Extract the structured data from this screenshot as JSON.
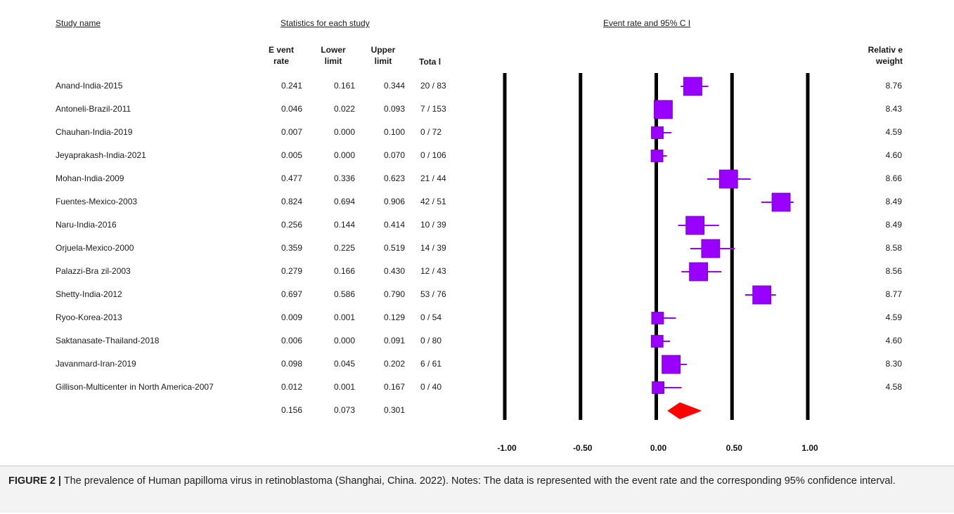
{
  "headers": {
    "study_name": "Study name",
    "statistics": "Statistics for each study",
    "event_rate_ci": "Event rate and 95% C I",
    "event_rate_l1": "E vent",
    "event_rate_l2": "rate",
    "lower_l1": "Lower",
    "lower_l2": "limit",
    "upper_l1": "Upper",
    "upper_l2": "limit",
    "total": "Tota l",
    "weight_l1": "Relativ e",
    "weight_l2": "weight"
  },
  "chart_data": {
    "type": "forest",
    "xlim": [
      -1.0,
      1.0
    ],
    "ticks": [
      "-1.00",
      "-0.50",
      "0.00",
      "0.50",
      "1.00"
    ],
    "tick_values": [
      -1.0,
      -0.5,
      0.0,
      0.5,
      1.0
    ],
    "marker_color": "#9900ff",
    "summary_color": "#ff0000",
    "studies": [
      {
        "name": "Anand-India-2015",
        "rate": "0.241",
        "lower": "0.161",
        "upper": "0.344",
        "total": "20 / 83",
        "weight": "8.76"
      },
      {
        "name": "Antoneli-Brazil-2011",
        "rate": "0.046",
        "lower": "0.022",
        "upper": "0.093",
        "total": "7 / 153",
        "weight": "8.43"
      },
      {
        "name": "Chauhan-India-2019",
        "rate": "0.007",
        "lower": "0.000",
        "upper": "0.100",
        "total": "0 / 72",
        "weight": "4.59"
      },
      {
        "name": "Jeyaprakash-India-2021",
        "rate": "0.005",
        "lower": "0.000",
        "upper": "0.070",
        "total": "0 / 106",
        "weight": "4.60"
      },
      {
        "name": "Mohan-India-2009",
        "rate": "0.477",
        "lower": "0.336",
        "upper": "0.623",
        "total": "21 / 44",
        "weight": "8.66"
      },
      {
        "name": "Fuentes-Mexico-2003",
        "rate": "0.824",
        "lower": "0.694",
        "upper": "0.906",
        "total": "42 / 51",
        "weight": "8.49"
      },
      {
        "name": "Naru-India-2016",
        "rate": "0.256",
        "lower": "0.144",
        "upper": "0.414",
        "total": "10 / 39",
        "weight": "8.49"
      },
      {
        "name": "Orjuela-Mexico-2000",
        "rate": "0.359",
        "lower": "0.225",
        "upper": "0.519",
        "total": "14 / 39",
        "weight": "8.58"
      },
      {
        "name": "Palazzi-Bra zil-2003",
        "rate": "0.279",
        "lower": "0.166",
        "upper": "0.430",
        "total": "12 / 43",
        "weight": "8.56"
      },
      {
        "name": "Shetty-India-2012",
        "rate": "0.697",
        "lower": "0.586",
        "upper": "0.790",
        "total": "53 / 76",
        "weight": "8.77"
      },
      {
        "name": "Ryoo-Korea-2013",
        "rate": "0.009",
        "lower": "0.001",
        "upper": "0.129",
        "total": "0 / 54",
        "weight": "4.59"
      },
      {
        "name": "Saktanasate-Thailand-2018",
        "rate": "0.006",
        "lower": "0.000",
        "upper": "0.091",
        "total": "0 / 80",
        "weight": "4.60"
      },
      {
        "name": "Javanmard-Iran-2019",
        "rate": "0.098",
        "lower": "0.045",
        "upper": "0.202",
        "total": "6 / 61",
        "weight": "8.30"
      },
      {
        "name": "Gillison-Multicenter in North America-2007",
        "rate": "0.012",
        "lower": "0.001",
        "upper": "0.167",
        "total": "0 / 40",
        "weight": "4.58"
      }
    ],
    "summary": {
      "rate": "0.156",
      "lower": "0.073",
      "upper": "0.301"
    }
  },
  "caption": {
    "label": "FIGURE 2 |",
    "text": " The prevalence of Human papilloma virus in retinoblastoma (Shanghai, China. 2022). Notes: The data is represented with the event rate and the corresponding 95% confidence interval."
  }
}
